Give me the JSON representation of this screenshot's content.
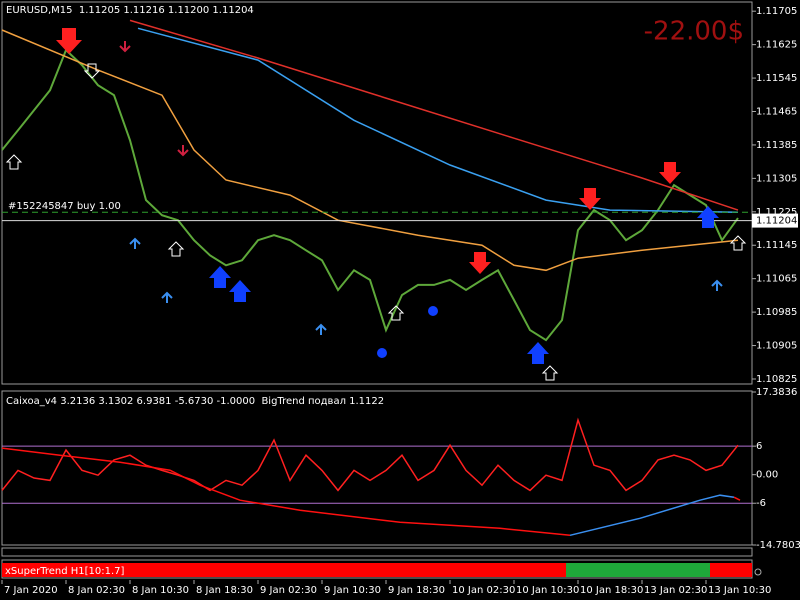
{
  "chart_data": [
    {
      "type": "line",
      "title": "EURUSD,M15  1.11205 1.11216 1.11200 1.11204",
      "profit": "-22.00$",
      "order_label": "#152245847 buy 1.00",
      "order_price": 1.11224,
      "price_line": 1.11204,
      "xlim": [
        0,
        375
      ],
      "xticks": [
        {
          "value": 0,
          "label": "7 Jan 2020"
        },
        {
          "value": 32,
          "label": "8 Jan 02:30"
        },
        {
          "value": 64,
          "label": "8 Jan 10:30"
        },
        {
          "value": 96,
          "label": "8 Jan 18:30"
        },
        {
          "value": 128,
          "label": "9 Jan 02:30"
        },
        {
          "value": 160,
          "label": "9 Jan 10:30"
        },
        {
          "value": 192,
          "label": "9 Jan 18:30"
        },
        {
          "value": 224,
          "label": "10 Jan 02:30"
        },
        {
          "value": 256,
          "label": "10 Jan 10:30"
        },
        {
          "value": 288,
          "label": "10 Jan 18:30"
        },
        {
          "value": 320,
          "label": "13 Jan 02:30"
        },
        {
          "value": 352,
          "label": "13 Jan 10:30"
        }
      ],
      "ylim": [
        1.10813,
        1.11727
      ],
      "yticks": [
        1.11705,
        1.11625,
        1.11545,
        1.11465,
        1.11385,
        1.11305,
        1.11225,
        1.11145,
        1.11065,
        1.10985,
        1.10905,
        1.10825
      ],
      "series": [
        {
          "color": "#5ea83a",
          "x": [
            0,
            8,
            16,
            24,
            32,
            40,
            48,
            56,
            64,
            72,
            80,
            88,
            96,
            104,
            112,
            120,
            128,
            136,
            144,
            152,
            160,
            168,
            176,
            184,
            192,
            200,
            208,
            216,
            224,
            232,
            240,
            248,
            256,
            264,
            272,
            280,
            288,
            296,
            304,
            312,
            320,
            328,
            336,
            344,
            352,
            360,
            368
          ],
          "values": [
            1.11373,
            1.1142,
            1.11468,
            1.11516,
            1.11612,
            1.11576,
            1.11528,
            1.11504,
            1.11396,
            1.11253,
            1.11217,
            1.11205,
            1.11157,
            1.11121,
            1.11097,
            1.11109,
            1.11157,
            1.11169,
            1.11157,
            1.11133,
            1.11109,
            1.11038,
            1.11085,
            1.11062,
            1.10942,
            1.11026,
            1.1105,
            1.1105,
            1.11062,
            1.11038,
            1.11062,
            1.11085,
            1.11014,
            1.10942,
            1.10918,
            1.10966,
            1.11181,
            1.11229,
            1.11205,
            1.11157,
            1.11181,
            1.11229,
            1.11289,
            1.11265,
            1.11241,
            1.11157,
            1.1121
          ]
        },
        {
          "color": "#e0302a",
          "x": [
            64,
            128,
            192,
            256,
            320,
            368
          ],
          "values": [
            1.11683,
            1.11593,
            1.11497,
            1.11401,
            1.11306,
            1.11229
          ]
        },
        {
          "color": "#3aa0f0",
          "x": [
            68,
            128,
            176,
            224,
            272,
            304,
            368
          ],
          "values": [
            1.11664,
            1.11588,
            1.11444,
            1.11337,
            1.11253,
            1.11229,
            1.11224
          ]
        },
        {
          "color": "#f0a040",
          "x": [
            0,
            48,
            80,
            96,
            112,
            144,
            168,
            208,
            240,
            256,
            272,
            288,
            320,
            368
          ],
          "values": [
            1.1166,
            1.11564,
            1.11504,
            1.11373,
            1.11301,
            1.11265,
            1.11205,
            1.11169,
            1.11145,
            1.11097,
            1.11085,
            1.11114,
            1.11133,
            1.11157
          ]
        }
      ]
    },
    {
      "type": "line",
      "title": "Caixoa_v4 3.2136 3.1302 6.9381 -5.6730 -1.0000  BigTrend подвал 1.1122",
      "xlim": [
        0,
        375
      ],
      "ylim": [
        -14.7803,
        17.3836
      ],
      "yticks": [
        17.3836,
        6,
        {
          "value": 0,
          "label": "0.00"
        },
        -6,
        -14.7803
      ],
      "levels": [
        6,
        -6
      ],
      "series": [
        {
          "color": "#ff2020",
          "x": [
            0,
            8,
            16,
            24,
            32,
            40,
            48,
            56,
            64,
            72,
            80,
            88,
            96,
            104,
            112,
            120,
            128,
            136,
            144,
            152,
            160,
            168,
            176,
            184,
            192,
            200,
            208,
            216,
            224,
            232,
            240,
            248,
            256,
            264,
            272,
            280,
            288,
            296,
            304,
            312,
            320,
            328,
            336,
            344,
            352,
            360,
            368
          ],
          "values": [
            -3.3,
            0.9,
            -0.7,
            -1.2,
            5.2,
            0.9,
            -0.1,
            3.1,
            4.1,
            2.0,
            0.9,
            -0.1,
            -1.2,
            -3.3,
            -1.2,
            -2.2,
            0.9,
            7.3,
            -1.2,
            4.1,
            0.9,
            -3.3,
            0.9,
            -1.2,
            0.9,
            4.1,
            -1.2,
            0.9,
            6.2,
            0.9,
            -2.2,
            2.0,
            -1.2,
            -3.3,
            -0.1,
            -1.2,
            11.5,
            2.0,
            0.9,
            -3.3,
            -1.2,
            3.1,
            4.1,
            3.1,
            0.9,
            2.0,
            6.2
          ]
        },
        {
          "color": "#ff1010",
          "x": [
            0,
            29,
            59,
            84,
            99,
            119,
            149,
            199,
            249,
            284
          ],
          "values": [
            5.58,
            4.1,
            2.63,
            0.95,
            -2.21,
            -5.37,
            -7.47,
            -10.0,
            -11.26,
            -12.74
          ]
        },
        {
          "color": "#3a8ff0",
          "x": [
            284,
            319,
            349,
            359,
            366
          ],
          "values": [
            -12.74,
            -9.16,
            -5.37,
            -4.32,
            -4.74
          ]
        },
        {
          "color": "#ff1010",
          "x": [
            366,
            369
          ],
          "values": [
            -4.74,
            -5.37
          ]
        }
      ]
    },
    {
      "type": "band",
      "title": "xSuperTrend H1[10:1.7]",
      "xlim": [
        0,
        375
      ],
      "series": [
        {
          "color": "#ff0000",
          "xlim": [
            0,
            282
          ]
        },
        {
          "color": "#1fa83a",
          "xlim": [
            282,
            354
          ]
        },
        {
          "color": "#ff0000",
          "xlim": [
            354,
            375
          ]
        }
      ]
    }
  ]
}
